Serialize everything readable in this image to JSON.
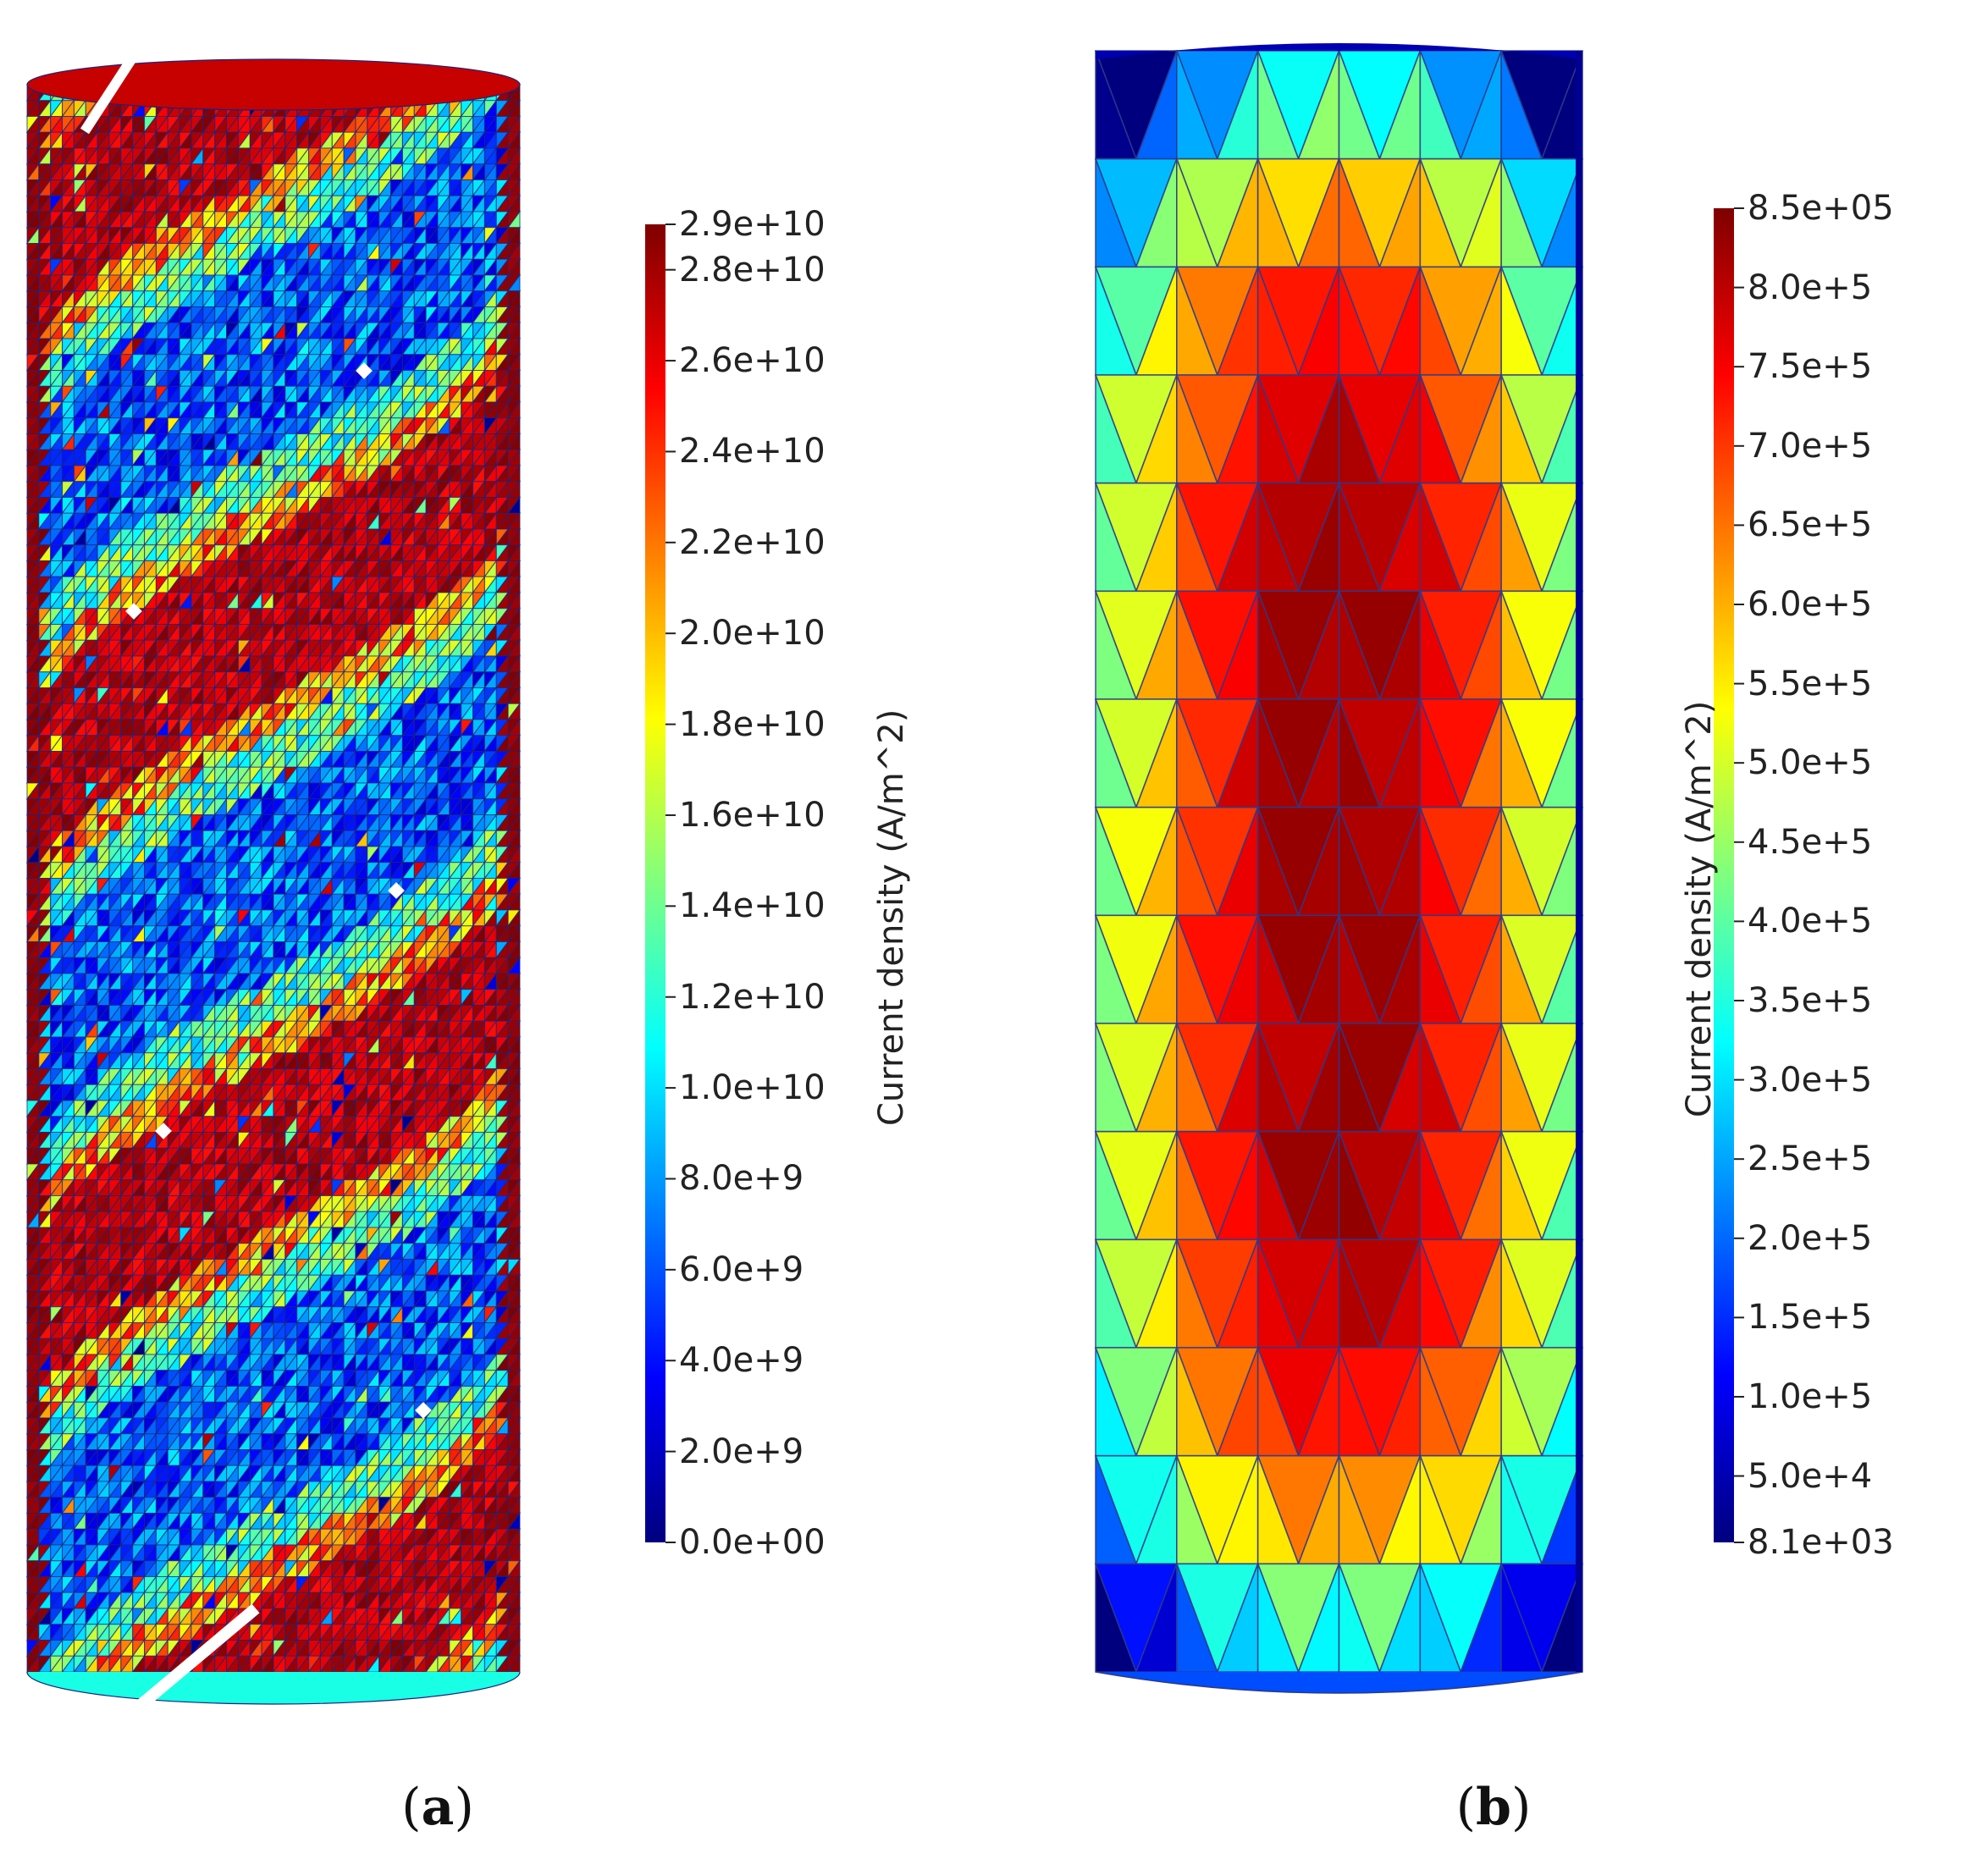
{
  "panels": [
    {
      "id": "a",
      "caption_letter": "a",
      "colorbar": {
        "title": "Current density  (A/m^2)",
        "ticks": [
          "2.9e+10",
          "2.8e+10",
          "2.6e+10",
          "2.4e+10",
          "2.2e+10",
          "2.0e+10",
          "1.8e+10",
          "1.6e+10",
          "1.4e+10",
          "1.2e+10",
          "1.0e+10",
          "8.0e+9",
          "6.0e+9",
          "4.0e+9",
          "2.0e+9",
          "0.0e+00"
        ],
        "tick_values": [
          29000000000.0,
          28000000000.0,
          26000000000.0,
          24000000000.0,
          22000000000.0,
          20000000000.0,
          18000000000.0,
          16000000000.0,
          14000000000.0,
          12000000000.0,
          10000000000.0,
          8000000000.0,
          6000000000.0,
          4000000000.0,
          2000000000.0,
          0
        ],
        "range": [
          0,
          29000000000.0
        ]
      }
    },
    {
      "id": "b",
      "caption_letter": "b",
      "colorbar": {
        "title": "Current density  (A/m^2)",
        "ticks": [
          "8.5e+05",
          "8.0e+5",
          "7.5e+5",
          "7.0e+5",
          "6.5e+5",
          "6.0e+5",
          "5.5e+5",
          "5.0e+5",
          "4.5e+5",
          "4.0e+5",
          "3.5e+5",
          "3.0e+5",
          "2.5e+5",
          "2.0e+5",
          "1.5e+5",
          "1.0e+5",
          "5.0e+4",
          "8.1e+03"
        ],
        "tick_values": [
          850000.0,
          800000.0,
          750000.0,
          700000.0,
          650000.0,
          600000.0,
          550000.0,
          500000.0,
          450000.0,
          400000.0,
          350000.0,
          300000.0,
          250000.0,
          200000.0,
          150000.0,
          100000.0,
          50000.0,
          8100.0
        ],
        "range": [
          8100.0,
          850000.0
        ]
      }
    }
  ],
  "colormap": [
    "#00007f",
    "#0000ff",
    "#007fff",
    "#00ffff",
    "#7fff7f",
    "#ffff00",
    "#ff7f00",
    "#ff0000",
    "#7f0000"
  ],
  "mesh_edge_color": "#1a237e"
}
